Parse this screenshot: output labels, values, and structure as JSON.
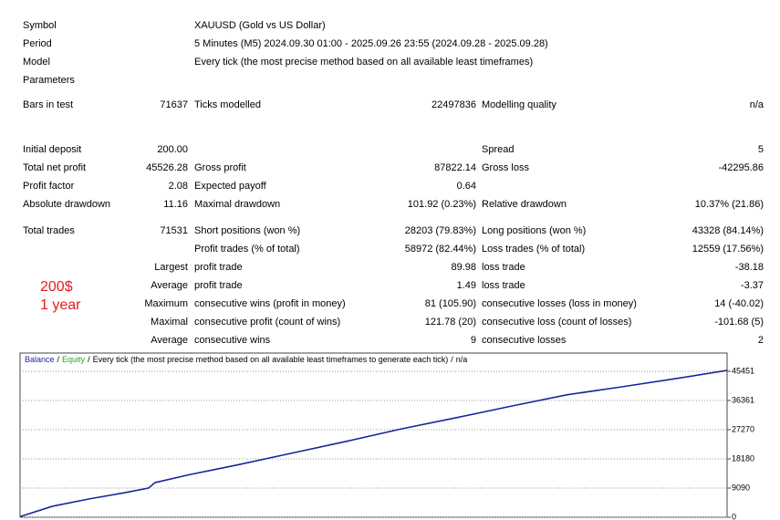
{
  "report": {
    "header": [
      {
        "label": "Symbol",
        "value": "XAUUSD (Gold vs US Dollar)"
      },
      {
        "label": "Period",
        "value": "5 Minutes (M5) 2024.09.30 01:00 - 2025.09.26 23:55 (2024.09.28 - 2025.09.28)"
      },
      {
        "label": "Model",
        "value": "Every tick (the most precise method based on all available least timeframes)"
      }
    ],
    "parameters_label": "Parameters",
    "stats": [
      [
        "Bars in test",
        "71637",
        "Ticks modelled",
        "22497836",
        "Modelling quality",
        "n/a"
      ],
      [
        "Initial deposit",
        "200.00",
        null,
        null,
        "Spread",
        "5"
      ],
      [
        "Total net profit",
        "45526.28",
        "Gross profit",
        "87822.14",
        "Gross loss",
        "-42295.86"
      ],
      [
        "Profit factor",
        "2.08",
        "Expected payoff",
        "0.64",
        null,
        null
      ],
      [
        "Absolute drawdown",
        "11.16",
        "Maximal drawdown",
        "101.92 (0.23%)",
        "Relative drawdown",
        "10.37% (21.86)"
      ],
      [
        "Total trades",
        "71531",
        "Short positions (won %)",
        "28203 (79.83%)",
        "Long positions (won %)",
        "43328 (84.14%)"
      ],
      [
        null,
        null,
        "Profit trades (% of total)",
        "58972 (82.44%)",
        "Loss trades (% of total)",
        "12559 (17.56%)"
      ],
      [
        null,
        "Largest",
        "profit trade",
        "89.98",
        "loss trade",
        "-38.18"
      ],
      [
        null,
        "Average",
        "profit trade",
        "1.49",
        "loss trade",
        "-3.37"
      ],
      [
        null,
        "Maximum",
        "consecutive wins (profit in money)",
        "81 (105.90)",
        "consecutive losses (loss in money)",
        "14 (-40.02)"
      ],
      [
        null,
        "Maximal",
        "consecutive profit (count of wins)",
        "121.78 (20)",
        "consecutive loss (count of losses)",
        "-101.68 (5)"
      ],
      [
        null,
        "Average",
        "consecutive wins",
        "9",
        "consecutive losses",
        "2"
      ]
    ],
    "annotation": [
      "200$",
      "1 year"
    ]
  },
  "chart_data": {
    "type": "line",
    "separator": "/",
    "caption": "Every tick (the most precise method based on all available least timeframes to generate each tick)",
    "quality": "n/a",
    "x": [
      0,
      3251,
      6967,
      10683,
      13006,
      13656,
      17186,
      21831,
      27405,
      32979,
      38553,
      44127,
      49701,
      55275,
      60849,
      66423,
      71531
    ],
    "xlim": [
      0,
      71531
    ],
    "ylim": [
      0,
      51130
    ],
    "yticks": [
      0,
      9090,
      18180,
      27270,
      36361,
      45451
    ],
    "grid": true,
    "series": [
      {
        "name": "Balance",
        "color": "#1f1fa8",
        "values": [
          200,
          3400,
          5700,
          7700,
          9100,
          10800,
          13300,
          16200,
          19900,
          23600,
          27500,
          31000,
          34600,
          38100,
          40600,
          43200,
          45726
        ]
      },
      {
        "name": "Equity",
        "color": "#22a822",
        "values": [
          200,
          3400,
          5700,
          7700,
          9100,
          10800,
          13300,
          16200,
          19900,
          23600,
          27500,
          31000,
          34600,
          38100,
          40600,
          43200,
          45726
        ]
      }
    ]
  }
}
